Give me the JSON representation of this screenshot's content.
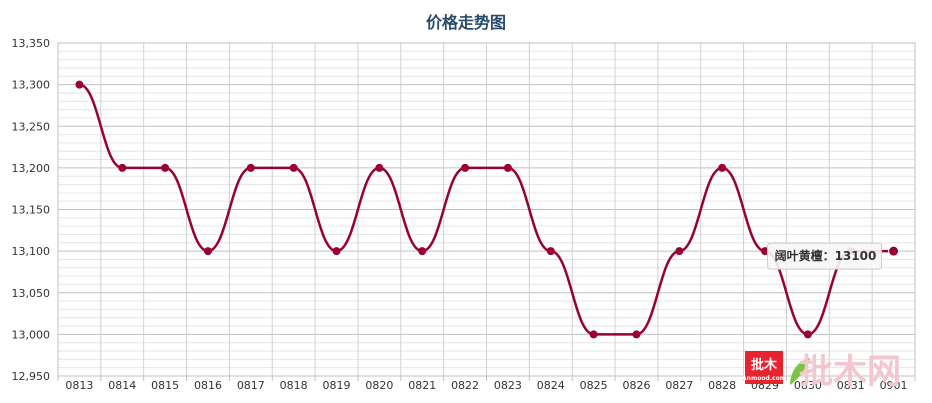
{
  "chart_data": {
    "type": "line",
    "title": "价格走势图",
    "xlabel": "",
    "ylabel": "",
    "categories": [
      "0813",
      "0814",
      "0815",
      "0816",
      "0817",
      "0818",
      "0819",
      "0820",
      "0821",
      "0822",
      "0823",
      "0824",
      "0825",
      "0826",
      "0827",
      "0828",
      "0829",
      "0830",
      "0831",
      "0901"
    ],
    "series": [
      {
        "values": [
          13300,
          13200,
          13200,
          13100,
          13200,
          13200,
          13100,
          13200,
          13100,
          13200,
          13200,
          13100,
          13000,
          13000,
          13100,
          13200,
          13100,
          13000,
          13100,
          13100
        ],
        "color": "#990033"
      }
    ],
    "ylim": [
      12950,
      13350
    ],
    "yticks": [
      "12,950",
      "13,000",
      "13,050",
      "13,100",
      "13,150",
      "13,200",
      "13,250",
      "13,300",
      "13,350"
    ],
    "grid": true,
    "tooltip": {
      "text": "阔叶黄檀：13100",
      "category": "0901"
    }
  },
  "watermark": {
    "badge": "批木",
    "badge_sub": "Anmood.com",
    "text": "批木网"
  }
}
